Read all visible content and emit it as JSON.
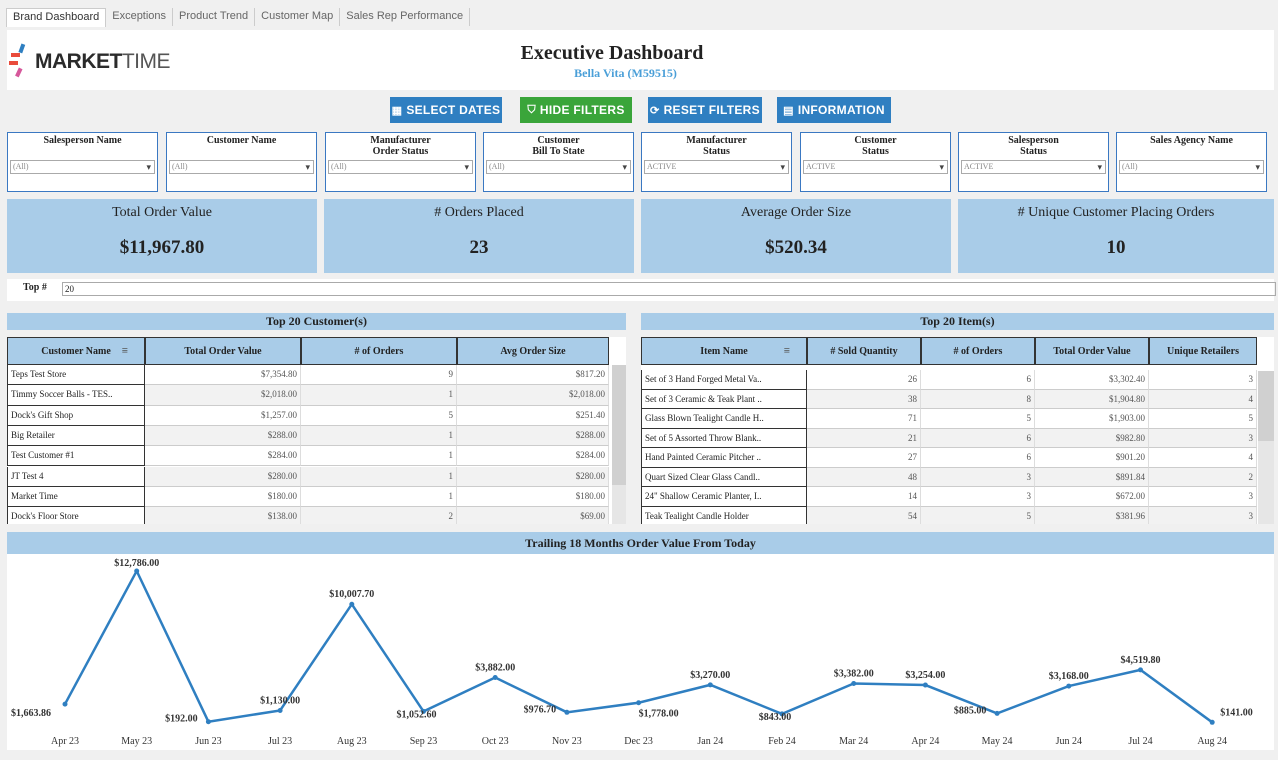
{
  "tabs": [
    "Brand Dashboard",
    "Exceptions",
    "Product Trend",
    "Customer Map",
    "Sales Rep Performance"
  ],
  "logo": {
    "bold": "MARKET",
    "light": "TIME"
  },
  "header": {
    "title": "Executive Dashboard",
    "subtitle": "Bella Vita (M59515)"
  },
  "buttons": [
    {
      "label": "SELECT DATES",
      "color": "#2f7fc1",
      "icon": "calendar-icon"
    },
    {
      "label": "HIDE FILTERS",
      "color": "#3aa53a",
      "icon": "filter-icon"
    },
    {
      "label": "RESET FILTERS",
      "color": "#2f7fc1",
      "icon": "refresh-icon"
    },
    {
      "label": "INFORMATION",
      "color": "#2f7fc1",
      "icon": "info-icon"
    }
  ],
  "filters": [
    {
      "label": "Salesperson Name",
      "value": "(All)"
    },
    {
      "label": "Customer Name",
      "value": "(All)"
    },
    {
      "label": "Manufacturer\nOrder Status",
      "value": "(All)"
    },
    {
      "label": "Customer\nBill To State",
      "value": "(All)"
    },
    {
      "label": "Manufacturer\nStatus",
      "value": "ACTIVE"
    },
    {
      "label": "Customer\nStatus",
      "value": "ACTIVE"
    },
    {
      "label": "Salesperson\nStatus",
      "value": "ACTIVE"
    },
    {
      "label": "Sales Agency Name",
      "value": "(All)"
    }
  ],
  "kpis": [
    {
      "label": "Total Order Value",
      "value": "$11,967.80"
    },
    {
      "label": "# Orders Placed",
      "value": "23"
    },
    {
      "label": "Average Order Size",
      "value": "$520.34"
    },
    {
      "label": "# Unique Customer Placing Orders",
      "value": "10"
    }
  ],
  "top": {
    "label": "Top #",
    "value": "20"
  },
  "customers": {
    "title": "Top 20 Customer(s)",
    "columns": [
      "Customer Name",
      "Total Order Value",
      "# of Orders",
      "Avg Order Size"
    ],
    "rows": [
      [
        "Teps Test Store",
        "$7,354.80",
        "9",
        "$817.20"
      ],
      [
        "Timmy Soccer Balls - TES..",
        "$2,018.00",
        "1",
        "$2,018.00"
      ],
      [
        "Dock's Gift Shop",
        "$1,257.00",
        "5",
        "$251.40"
      ],
      [
        "Big Retailer",
        "$288.00",
        "1",
        "$288.00"
      ],
      [
        "Test Customer #1",
        "$284.00",
        "1",
        "$284.00"
      ],
      [
        "JT Test 4",
        "$280.00",
        "1",
        "$280.00"
      ],
      [
        "Market Time",
        "$180.00",
        "1",
        "$180.00"
      ],
      [
        "Dock's Floor Store",
        "$138.00",
        "2",
        "$69.00"
      ]
    ]
  },
  "items": {
    "title": "Top 20 Item(s)",
    "columns": [
      "Item Name",
      "# Sold Quantity",
      "# of Orders",
      "Total Order Value",
      "Unique Retailers"
    ],
    "rows": [
      [
        "Set of 3 Hand Forged Metal Va..",
        "26",
        "6",
        "$3,302.40",
        "3"
      ],
      [
        "Set of 3 Ceramic & Teak Plant ..",
        "38",
        "8",
        "$1,904.80",
        "4"
      ],
      [
        "Glass Blown Tealight Candle H..",
        "71",
        "5",
        "$1,903.00",
        "5"
      ],
      [
        "Set of 5 Assorted Throw Blank..",
        "21",
        "6",
        "$982.80",
        "3"
      ],
      [
        "Hand Painted Ceramic Pitcher ..",
        "27",
        "6",
        "$901.20",
        "4"
      ],
      [
        "Quart Sized Clear Glass Candl..",
        "48",
        "3",
        "$891.84",
        "2"
      ],
      [
        "24\" Shallow Ceramic Planter, I..",
        "14",
        "3",
        "$672.00",
        "3"
      ],
      [
        "Teak Tealight Candle Holder",
        "54",
        "5",
        "$381.96",
        "3"
      ]
    ]
  },
  "chart_data": {
    "type": "line",
    "title": "Trailing 18 Months Order Value From Today",
    "color": "#2f7fc1",
    "x": [
      "Apr 23",
      "May 23",
      "Jun 23",
      "Jul 23",
      "Aug 23",
      "Sep 23",
      "Oct 23",
      "Nov 23",
      "Dec 23",
      "Jan 24",
      "Feb 24",
      "Mar 24",
      "Apr 24",
      "May 24",
      "Jun 24",
      "Jul 24",
      "Aug 24"
    ],
    "values": [
      1663.86,
      12786.0,
      192.0,
      1130.0,
      10007.7,
      1052.6,
      3882.0,
      976.7,
      1778.0,
      3270.0,
      843.0,
      3382.0,
      3254.0,
      885.0,
      3168.0,
      4519.8,
      141.0
    ],
    "labels": [
      "$1,663.86",
      "$12,786.00",
      "$192.00",
      "$1,130.00",
      "$10,007.70",
      "$1,052.60",
      "$3,882.00",
      "$976.70",
      "$1,778.00",
      "$3,270.00",
      "$843.00",
      "$3,382.00",
      "$3,254.00",
      "$885.00",
      "$3,168.00",
      "$4,519.80",
      "$141.00"
    ],
    "ylim": [
      0,
      13200
    ],
    "grid": false
  }
}
